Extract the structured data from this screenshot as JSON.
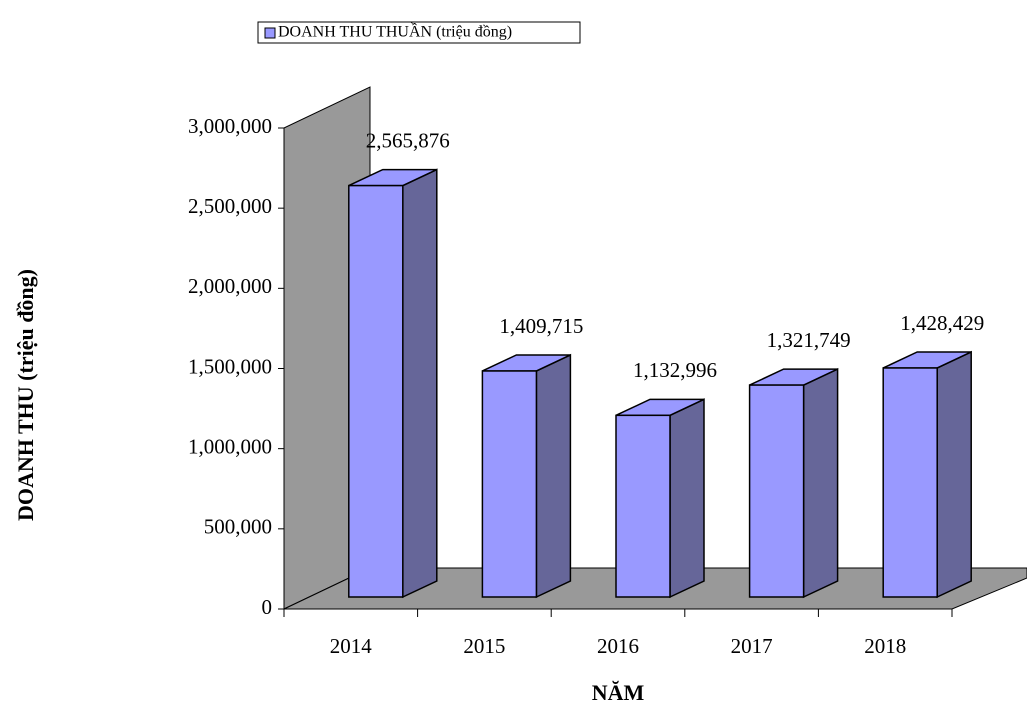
{
  "chart_data": {
    "type": "bar3d",
    "legend_label": "DOANH THU THUẦN (triệu đồng)",
    "y_label": "DOANH THU (triệu đồng)",
    "x_label": "NĂM",
    "categories": [
      "2014",
      "2015",
      "2016",
      "2017",
      "2018"
    ],
    "values": [
      2565876,
      1409715,
      1132996,
      1321749,
      1428429
    ],
    "value_labels": [
      "2,565,876",
      "1,409,715",
      "1,132,996",
      "1,321,749",
      "1,428,429"
    ],
    "color": "#9999ff",
    "side_color": "#666699",
    "ylim": [
      0,
      3000000
    ],
    "yticks": [
      0,
      {
        "value": 500000,
        "label": "500,000"
      },
      {
        "value": 1000000,
        "label": "1,000,000"
      },
      {
        "value": 1500000,
        "label": "1,500,000"
      },
      {
        "value": 2000000,
        "label": "2,000,000"
      },
      {
        "value": 2500000,
        "label": "2,500,000"
      },
      {
        "value": 3000000,
        "label": "3,000,000"
      }
    ]
  }
}
